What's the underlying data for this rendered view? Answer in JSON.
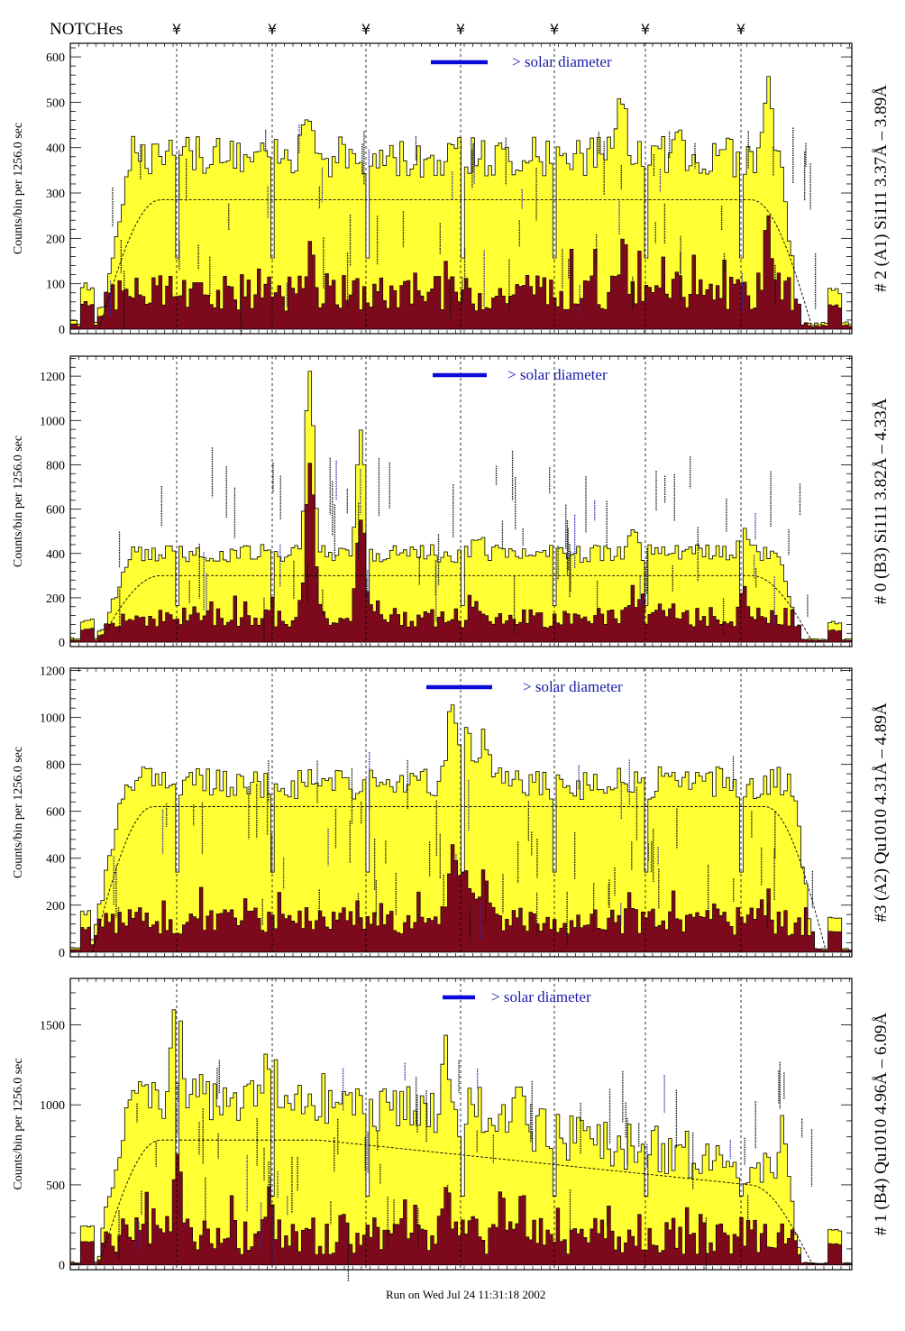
{
  "header": {
    "notches_label": "NOTCHes",
    "notch_symbol": "¥",
    "notch_count": 7
  },
  "footer": {
    "run_label": "Run on Wed Jul 24 11:31:18 2002"
  },
  "colors": {
    "fill_total": "#ffff33",
    "fill_low": "#7d0a1c",
    "solar_bar": "#0a0ad8",
    "solar_text": "#1a1aa8"
  },
  "chart_data": [
    {
      "type": "area",
      "ylabel": "Counts/bin per  1256.0 sec",
      "right_label": "# 2 (A1) Si111  3.37Å – 3.89Å",
      "legend_text": "> solar diameter",
      "yticks": [
        0,
        100,
        200,
        300,
        400,
        500,
        600
      ],
      "ylim": [
        -10,
        630
      ],
      "bins": 230,
      "x_start_bin": 12,
      "x_end_bin": 214,
      "plateau": 380,
      "noise": 45,
      "spikes": [
        [
          70,
          100
        ],
        [
          162,
          120
        ],
        [
          178,
          90
        ],
        [
          205,
          180
        ]
      ],
      "smooth_level": 285,
      "dark_level": 80,
      "dark_noise": 40,
      "notch_gaps": [
        30,
        58,
        86,
        114,
        142,
        170,
        198
      ]
    },
    {
      "type": "area",
      "ylabel": "Counts/bin per  1256.0 sec",
      "right_label": "# 0 (B3) Si111  3.82Å – 4.33Å",
      "legend_text": "> solar diameter",
      "yticks": [
        0,
        200,
        400,
        600,
        800,
        1000,
        1200
      ],
      "ylim": [
        -20,
        1290
      ],
      "bins": 230,
      "x_start_bin": 12,
      "x_end_bin": 214,
      "plateau": 400,
      "noise": 40,
      "spikes": [
        [
          70,
          860
        ],
        [
          85,
          560
        ],
        [
          120,
          80
        ],
        [
          165,
          120
        ],
        [
          198,
          120
        ]
      ],
      "smooth_level": 300,
      "dark_level": 110,
      "dark_noise": 45,
      "notch_gaps": [
        30,
        58,
        86,
        114,
        142,
        170,
        198
      ]
    },
    {
      "type": "area",
      "ylabel": "Counts/bin per   1256.0 sec",
      "right_label": "#3 (A2) Qu1010  4.31Å – 4.89Å",
      "legend_text": "> solar diameter",
      "yticks": [
        0,
        200,
        400,
        600,
        800,
        1000,
        1200
      ],
      "ylim": [
        -20,
        1210
      ],
      "bins": 230,
      "x_start_bin": 10,
      "x_end_bin": 218,
      "plateau": 720,
      "noise": 70,
      "spikes": [
        [
          112,
          350
        ],
        [
          116,
          300
        ],
        [
          121,
          200
        ]
      ],
      "smooth_level": 620,
      "dark_level": 130,
      "dark_noise": 60,
      "notch_gaps": [
        30,
        58,
        86,
        114,
        142,
        170,
        198
      ]
    },
    {
      "type": "area",
      "ylabel": "Counts/bin per   1256.0 sec",
      "right_label": "# 1 (B4) Qu1010 4.96Å – 6.09Å",
      "legend_text": "> solar diameter",
      "yticks": [
        0,
        500,
        1000,
        1500
      ],
      "ylim": [
        -30,
        1790
      ],
      "bins": 230,
      "x_start_bin": 12,
      "x_end_bin": 214,
      "plateau": 1050,
      "noise": 160,
      "decline": 0.45,
      "spikes": [
        [
          31,
          600
        ],
        [
          58,
          300
        ],
        [
          110,
          350
        ],
        [
          118,
          250
        ],
        [
          132,
          300
        ]
      ],
      "smooth_level": 780,
      "dark_level": 180,
      "dark_noise": 120,
      "notch_gaps": [
        30,
        58,
        86,
        114,
        142,
        170,
        198
      ]
    }
  ]
}
